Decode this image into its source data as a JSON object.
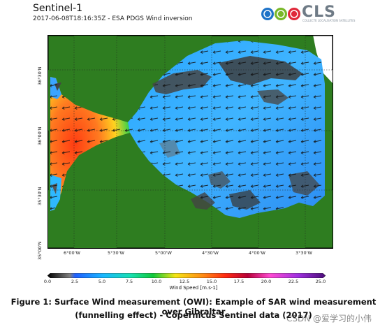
{
  "header": {
    "title": "Sentinel-1",
    "subtitle": "2017-06-08T18:16:35Z - ESA PDGS Wind inversion"
  },
  "logo": {
    "text": "CLS",
    "tagline": "COLLECTE LOCALISATION SATELLITES"
  },
  "map": {
    "lat_labels": [
      "36°30'N",
      "36°00'N",
      "35°30'N",
      "35°00'N"
    ],
    "lon_labels": [
      "6°00'W",
      "5°30'W",
      "5°00'W",
      "4°30'W",
      "4°00'W",
      "3°30'W"
    ],
    "colors": {
      "land": "#2e7d20",
      "sea_low": "#3ba4ff",
      "gibraltar_high": "#ff5a1f",
      "calm": "#4a4a4a"
    }
  },
  "colorbar": {
    "ticks": [
      "0.0",
      "2.5",
      "5.0",
      "7.5",
      "10.0",
      "12.5",
      "15.0",
      "17.5",
      "20.0",
      "22.5",
      "25.0"
    ],
    "label": "Wind Speed [m.s-1]"
  },
  "caption": {
    "line1": "Figure 1: Surface Wind measurement (OWI): Example of SAR wind measurement over Gibraltar",
    "line2": "(funnelling effect) - Copernicus Sentinel data (2017)"
  },
  "watermark": "CSDN @爱学习的小伟"
}
